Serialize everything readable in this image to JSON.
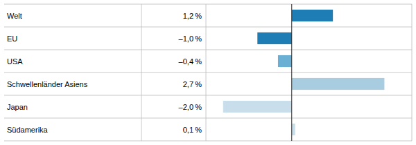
{
  "chart_data": {
    "type": "bar",
    "orientation": "horizontal",
    "categories": [
      "Welt",
      "EU",
      "USA",
      "Schwellenländer Asiens",
      "Japan",
      "Südamerika"
    ],
    "values": [
      1.2,
      -1.0,
      -0.4,
      2.7,
      -2.0,
      0.1
    ],
    "value_labels": [
      "1,2 %",
      "–1,0 %",
      "–0,4 %",
      "2,7 %",
      "–2,0 %",
      "0,1 %"
    ],
    "colors": [
      "#1e7db5",
      "#1e7db5",
      "#6ab0d4",
      "#a8cde0",
      "#c8deeb",
      "#c8deeb"
    ],
    "xlim": [
      -2.5,
      3.5
    ],
    "data_labels": true,
    "tick_labels": "y"
  }
}
